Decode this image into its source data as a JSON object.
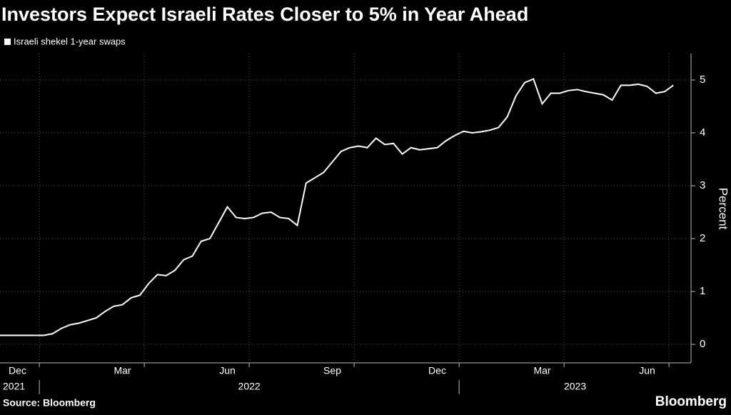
{
  "chart_data": {
    "type": "line",
    "title": "Investors Expect Israeli Rates Closer to 5% in Year Ahead",
    "ylabel": "Percent",
    "source": "Source: Bloomberg",
    "brand": "Bloomberg",
    "years": [
      "2021",
      "2022",
      "2023"
    ],
    "categories": [
      null,
      null,
      "Dec",
      null,
      null,
      null,
      null,
      null,
      null,
      null,
      null,
      null,
      null,
      null,
      "Mar",
      null,
      null,
      null,
      null,
      null,
      null,
      null,
      null,
      null,
      null,
      null,
      "Jun",
      null,
      null,
      null,
      null,
      null,
      null,
      null,
      null,
      null,
      null,
      null,
      "Sep",
      null,
      null,
      null,
      null,
      null,
      null,
      null,
      null,
      null,
      null,
      null,
      "Dec",
      null,
      null,
      null,
      null,
      null,
      null,
      null,
      null,
      null,
      null,
      null,
      "Mar",
      null,
      null,
      null,
      null,
      null,
      null,
      null,
      null,
      null,
      null,
      null,
      "Jun",
      null,
      null,
      null
    ],
    "series": [
      {
        "name": "Israeli shekel 1-year swaps",
        "color": "#ffffff",
        "values": [
          0.17,
          0.17,
          0.17,
          0.17,
          0.17,
          0.17,
          0.2,
          0.3,
          0.37,
          0.4,
          0.45,
          0.5,
          0.62,
          0.72,
          0.75,
          0.88,
          0.93,
          1.15,
          1.32,
          1.3,
          1.4,
          1.6,
          1.67,
          1.95,
          2.0,
          2.3,
          2.6,
          2.4,
          2.38,
          2.4,
          2.48,
          2.5,
          2.4,
          2.38,
          2.25,
          3.05,
          3.15,
          3.25,
          3.45,
          3.65,
          3.72,
          3.75,
          3.72,
          3.9,
          3.78,
          3.8,
          3.6,
          3.72,
          3.68,
          3.7,
          3.72,
          3.85,
          3.95,
          4.03,
          4.0,
          4.02,
          4.05,
          4.1,
          4.3,
          4.7,
          4.95,
          5.02,
          4.55,
          4.75,
          4.75,
          4.8,
          4.82,
          4.78,
          4.75,
          4.72,
          4.62,
          4.9,
          4.9,
          4.92,
          4.88,
          4.75,
          4.78,
          4.9
        ]
      }
    ],
    "ylim": [
      -0.35,
      5.5
    ],
    "yticks": [
      0,
      1,
      2,
      3,
      4,
      5
    ],
    "grid": true
  }
}
